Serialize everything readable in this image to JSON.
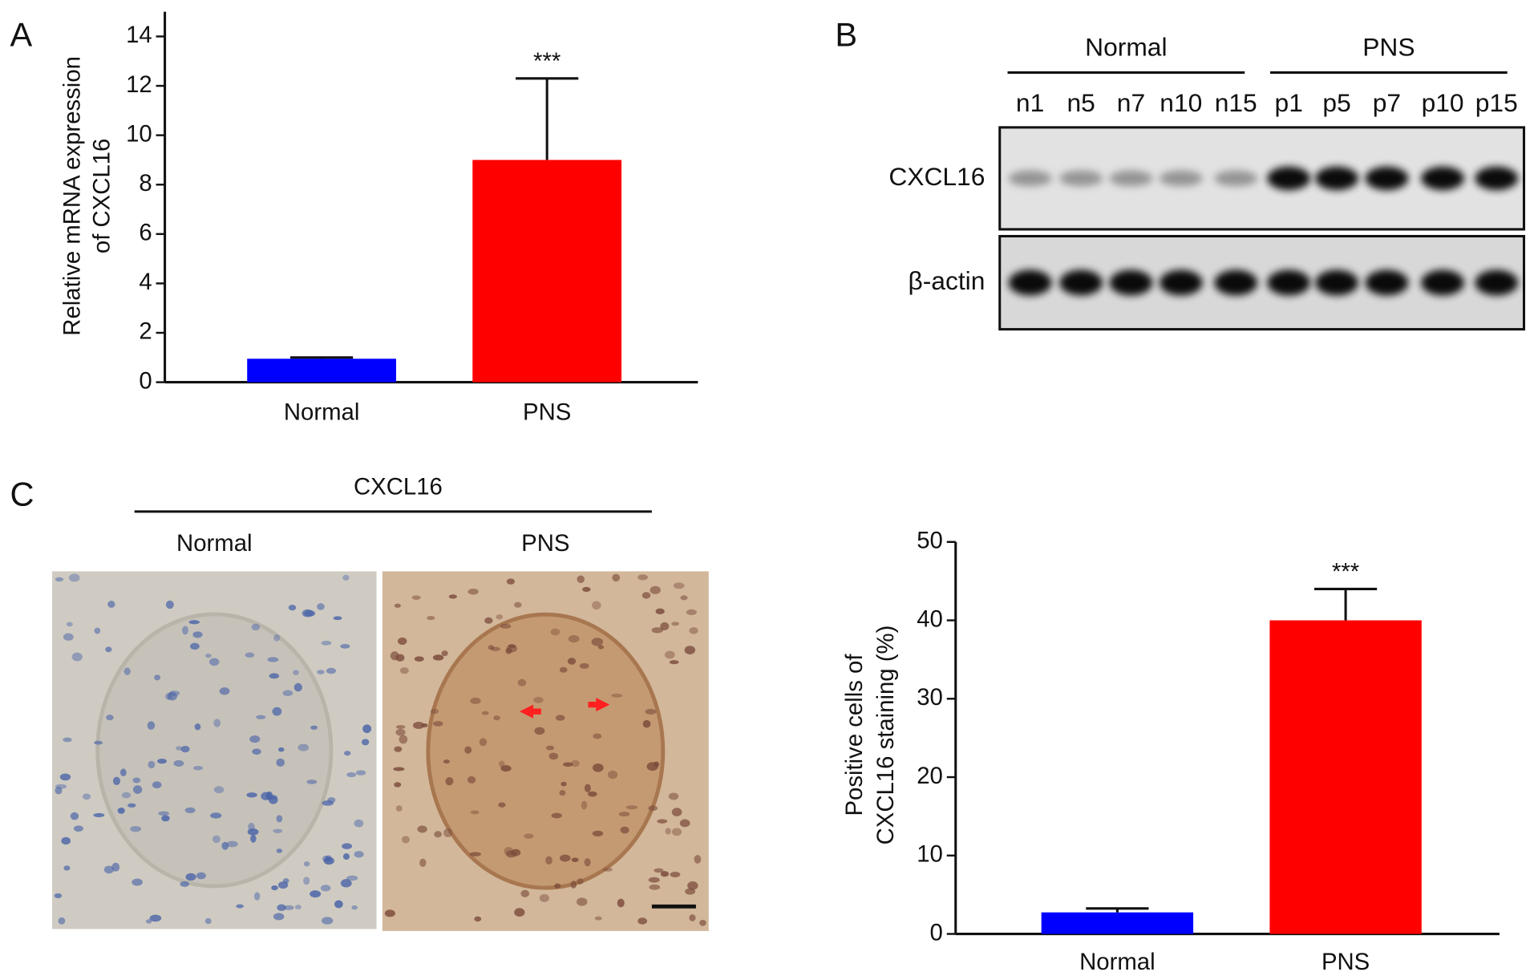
{
  "panels": [
    "A",
    "B",
    "C"
  ],
  "chart_data": [
    {
      "type": "bar",
      "ylabel": [
        "Relative mRNA expression",
        "of CXCL16"
      ],
      "categories": [
        "Normal",
        "PNS"
      ],
      "values": [
        0.95,
        9.0
      ],
      "errors": [
        0.05,
        3.3
      ],
      "colors": [
        "#0000ff",
        "#ff0000"
      ],
      "significance": [
        null,
        "***"
      ],
      "ylim": [
        0,
        15
      ],
      "yticks": [
        0,
        2,
        4,
        6,
        8,
        10,
        12,
        14
      ]
    },
    {
      "type": "bar",
      "ylabel": [
        "Positive cells of",
        "CXCL16 staining (%)"
      ],
      "categories": [
        "Normal",
        "PNS"
      ],
      "values": [
        2.75,
        40
      ],
      "errors": [
        0.5,
        4
      ],
      "colors": [
        "#0000ff",
        "#ff0000"
      ],
      "significance": [
        null,
        "***"
      ],
      "ylim": [
        0,
        50
      ],
      "yticks": [
        0,
        10,
        20,
        30,
        40,
        50
      ]
    }
  ],
  "blot": {
    "groups": [
      "Normal",
      "PNS"
    ],
    "lanes": [
      "n1",
      "n5",
      "n7",
      "n10",
      "n15",
      "p1",
      "p5",
      "p7",
      "p10",
      "p15"
    ],
    "rows": [
      "CXCL16",
      "β-actin"
    ]
  },
  "histology": {
    "stain": "CXCL16",
    "groups": [
      "Normal",
      "PNS"
    ]
  }
}
